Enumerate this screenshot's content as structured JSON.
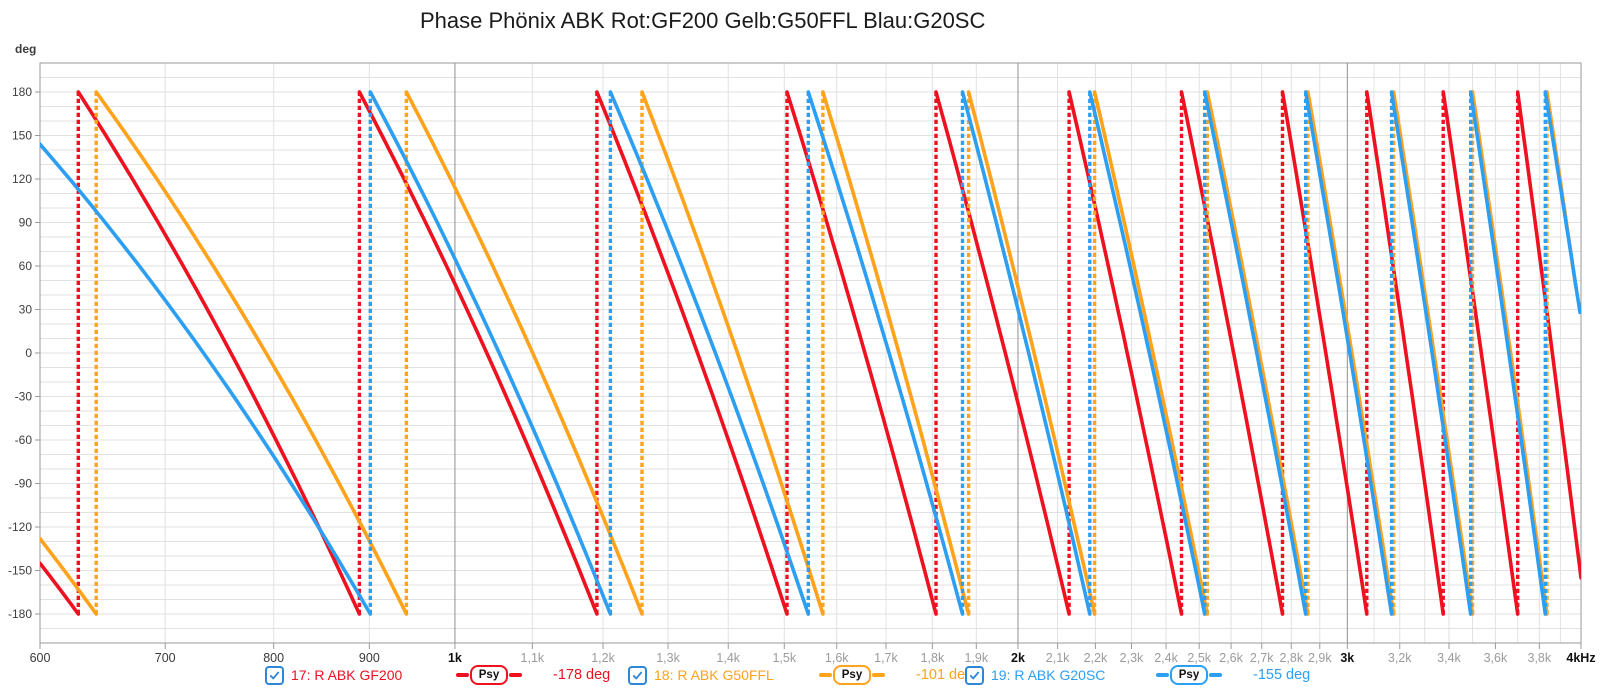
{
  "title": "Phase Phönix ABK Rot:GF200 Gelb:G50FFL Blau:G20SC",
  "chart_data": {
    "type": "line",
    "title": "Phase Phönix ABK Rot:GF200 Gelb:G50FFL Blau:G20SC",
    "description": "Wrapped phase responses (sawtooth between +180 and -180 deg) of three speaker measurements; dashed vertical lines mark the wrap frequencies.",
    "x_axis": {
      "scale": "log",
      "unit": "Hz",
      "min_hz": 600,
      "max_hz": 4000,
      "gridline_step_hz": 100,
      "dark_gridlines_hz": [
        1000,
        2000,
        3000
      ],
      "ticks": [
        {
          "f": 600,
          "label": "600",
          "style": "dark"
        },
        {
          "f": 700,
          "label": "700",
          "style": "dark"
        },
        {
          "f": 800,
          "label": "800",
          "style": "dark"
        },
        {
          "f": 900,
          "label": "900",
          "style": "dark"
        },
        {
          "f": 1000,
          "label": "1k",
          "style": "bold"
        },
        {
          "f": 1100,
          "label": "1,1k",
          "style": "gray"
        },
        {
          "f": 1200,
          "label": "1,2k",
          "style": "gray"
        },
        {
          "f": 1300,
          "label": "1,3k",
          "style": "gray"
        },
        {
          "f": 1400,
          "label": "1,4k",
          "style": "gray"
        },
        {
          "f": 1500,
          "label": "1,5k",
          "style": "gray"
        },
        {
          "f": 1600,
          "label": "1,6k",
          "style": "gray"
        },
        {
          "f": 1700,
          "label": "1,7k",
          "style": "gray"
        },
        {
          "f": 1800,
          "label": "1,8k",
          "style": "gray"
        },
        {
          "f": 1900,
          "label": "1,9k",
          "style": "gray"
        },
        {
          "f": 2000,
          "label": "2k",
          "style": "bold"
        },
        {
          "f": 2100,
          "label": "2,1k",
          "style": "gray"
        },
        {
          "f": 2200,
          "label": "2,2k",
          "style": "gray"
        },
        {
          "f": 2300,
          "label": "2,3k",
          "style": "gray"
        },
        {
          "f": 2400,
          "label": "2,4k",
          "style": "gray"
        },
        {
          "f": 2500,
          "label": "2,5k",
          "style": "gray"
        },
        {
          "f": 2600,
          "label": "2,6k",
          "style": "gray"
        },
        {
          "f": 2700,
          "label": "2,7k",
          "style": "gray"
        },
        {
          "f": 2800,
          "label": "2,8k",
          "style": "gray"
        },
        {
          "f": 2900,
          "label": "2,9k",
          "style": "gray"
        },
        {
          "f": 3000,
          "label": "3k",
          "style": "bold"
        },
        {
          "f": 3200,
          "label": "3,2k",
          "style": "gray"
        },
        {
          "f": 3400,
          "label": "3,4k",
          "style": "gray"
        },
        {
          "f": 3600,
          "label": "3,6k",
          "style": "gray"
        },
        {
          "f": 3800,
          "label": "3,8k",
          "style": "gray"
        },
        {
          "f": 4000,
          "label": "4kHz",
          "style": "bold"
        }
      ]
    },
    "y_axis": {
      "label": "deg",
      "min": -200,
      "max": 200,
      "label_step_deg": 30,
      "minor_gridline_step_deg": 10,
      "tick_labels": [
        "180",
        "150",
        "120",
        "90",
        "60",
        "30",
        "0",
        "-30",
        "-60",
        "-90",
        "-120",
        "-150",
        "-180"
      ]
    },
    "series": [
      {
        "legend_ref": 0,
        "wrap_low_deg": -180,
        "wrap_high_deg": 180,
        "start_hz": 600,
        "start_phase_deg": -145,
        "end_hz": 4000,
        "end_phase_deg": -155,
        "wrap_hz": [
          629,
          889,
          1191,
          1505,
          1808,
          2130,
          2446,
          2770,
          3073,
          3376,
          3700
        ]
      },
      {
        "legend_ref": 1,
        "wrap_low_deg": -180,
        "wrap_high_deg": 180,
        "start_hz": 600,
        "start_phase_deg": -128,
        "end_hz": 3975,
        "end_phase_deg": 45,
        "wrap_hz": [
          643,
          942,
          1259,
          1573,
          1882,
          2198,
          2525,
          2858,
          3176,
          3500,
          3836
        ]
      },
      {
        "legend_ref": 2,
        "wrap_low_deg": -180,
        "wrap_high_deg": 180,
        "start_hz": 600,
        "start_phase_deg": 144,
        "end_hz": 3995,
        "end_phase_deg": 28,
        "wrap_hz": [
          901,
          1211,
          1545,
          1868,
          2185,
          2517,
          2850,
          3168,
          3492,
          3828
        ]
      }
    ],
    "colors": {
      "grid_minor": "#e2e2e2",
      "grid_dark": "#8f8f8f",
      "frame": "#9a9a9a"
    }
  },
  "legend": {
    "items": [
      {
        "name": "17: R ABK GF200",
        "smoothing": "Psy",
        "value": "-178 deg",
        "color": "#ee1120",
        "checked": true
      },
      {
        "name": "18: R ABK G50FFL",
        "smoothing": "Psy",
        "value": "-101 deg",
        "color": "#ffa21c",
        "checked": true
      },
      {
        "name": "19: R ABK G20SC",
        "smoothing": "Psy",
        "value": "-155 deg",
        "color": "#2d9ff2",
        "checked": true
      }
    ],
    "checkbox_color": "#2e86d5"
  }
}
